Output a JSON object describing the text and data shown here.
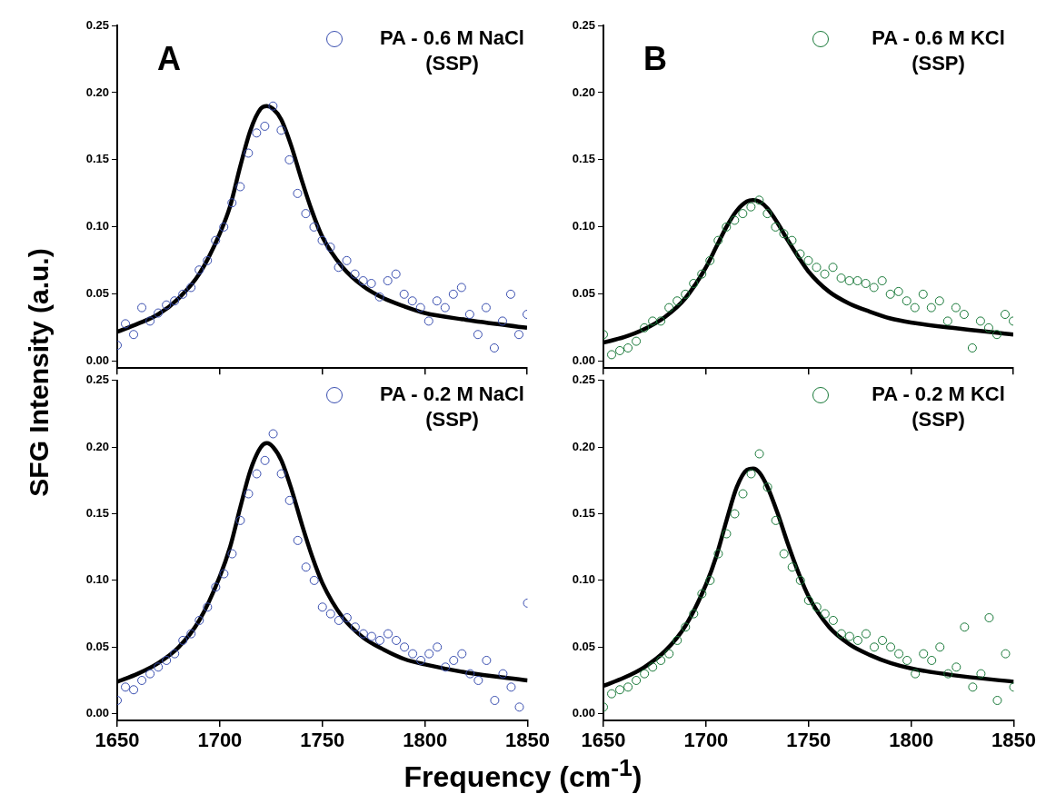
{
  "chart_data": [
    {
      "type": "scatter",
      "annotations": [
        "A"
      ],
      "ylabel": "SFG Intensity (a.u.)",
      "legend": "top right",
      "tick_labels": "y",
      "xlim": [
        1650,
        1850
      ],
      "xticks": [
        1650,
        1700,
        1750,
        1800,
        1850
      ],
      "ylim": [
        -0.005,
        0.25
      ],
      "yticks": [
        {
          "value": 0,
          "label": "0.00"
        },
        0.05,
        {
          "value": 0.1,
          "label": "0.10"
        },
        0.15,
        {
          "value": 0.2,
          "label": "0.20"
        },
        0.25
      ],
      "series": [
        {
          "name": "PA - 0.6 M NaCl (SSP)",
          "type": "scatter",
          "marker": "circle",
          "color": "#3a4fb0",
          "x": [
            1650,
            1654,
            1658,
            1662,
            1666,
            1670,
            1674,
            1678,
            1682,
            1686,
            1690,
            1694,
            1698,
            1702,
            1706,
            1710,
            1714,
            1718,
            1722,
            1726,
            1730,
            1734,
            1738,
            1742,
            1746,
            1750,
            1754,
            1758,
            1762,
            1766,
            1770,
            1774,
            1778,
            1782,
            1786,
            1790,
            1794,
            1798,
            1802,
            1806,
            1810,
            1814,
            1818,
            1822,
            1826,
            1830,
            1834,
            1838,
            1842,
            1846,
            1850
          ],
          "values": [
            0.012,
            0.028,
            0.02,
            0.04,
            0.03,
            0.036,
            0.042,
            0.045,
            0.05,
            0.055,
            0.068,
            0.075,
            0.09,
            0.1,
            0.118,
            0.13,
            0.155,
            0.17,
            0.175,
            0.19,
            0.172,
            0.15,
            0.125,
            0.11,
            0.1,
            0.09,
            0.085,
            0.07,
            0.075,
            0.065,
            0.06,
            0.058,
            0.048,
            0.06,
            0.065,
            0.05,
            0.045,
            0.04,
            0.03,
            0.045,
            0.04,
            0.05,
            0.055,
            0.035,
            0.02,
            0.04,
            0.01,
            0.03,
            0.05,
            0.02,
            0.035
          ]
        },
        {
          "type": "line",
          "color": "#000000",
          "x": [
            1650,
            1660,
            1670,
            1680,
            1690,
            1700,
            1705,
            1710,
            1715,
            1720,
            1723,
            1726,
            1730,
            1735,
            1740,
            1745,
            1750,
            1760,
            1770,
            1780,
            1790,
            1800,
            1820,
            1850
          ],
          "values": [
            0.022,
            0.028,
            0.035,
            0.047,
            0.065,
            0.095,
            0.115,
            0.145,
            0.172,
            0.188,
            0.19,
            0.188,
            0.18,
            0.16,
            0.135,
            0.112,
            0.093,
            0.07,
            0.056,
            0.047,
            0.041,
            0.036,
            0.031,
            0.025
          ]
        }
      ]
    },
    {
      "type": "scatter",
      "annotations": [
        "B"
      ],
      "legend": "top right",
      "tick_labels": "y",
      "xlim": [
        1650,
        1850
      ],
      "xticks": [
        1650,
        1700,
        1750,
        1800,
        1850
      ],
      "ylim": [
        -0.005,
        0.25
      ],
      "yticks": [
        {
          "value": 0,
          "label": "0.00"
        },
        0.05,
        {
          "value": 0.1,
          "label": "0.10"
        },
        0.15,
        {
          "value": 0.2,
          "label": "0.20"
        },
        0.25
      ],
      "series": [
        {
          "name": "PA - 0.6 M KCl (SSP)",
          "type": "scatter",
          "marker": "circle",
          "color": "#1a7a3a",
          "x": [
            1650,
            1654,
            1658,
            1662,
            1666,
            1670,
            1674,
            1678,
            1682,
            1686,
            1690,
            1694,
            1698,
            1702,
            1706,
            1710,
            1714,
            1718,
            1722,
            1726,
            1730,
            1734,
            1738,
            1742,
            1746,
            1750,
            1754,
            1758,
            1762,
            1766,
            1770,
            1774,
            1778,
            1782,
            1786,
            1790,
            1794,
            1798,
            1802,
            1806,
            1810,
            1814,
            1818,
            1822,
            1826,
            1830,
            1834,
            1838,
            1842,
            1846,
            1850
          ],
          "values": [
            0.02,
            0.005,
            0.008,
            0.01,
            0.015,
            0.025,
            0.03,
            0.03,
            0.04,
            0.045,
            0.05,
            0.058,
            0.065,
            0.075,
            0.09,
            0.1,
            0.105,
            0.11,
            0.115,
            0.12,
            0.11,
            0.1,
            0.095,
            0.09,
            0.08,
            0.075,
            0.07,
            0.065,
            0.07,
            0.062,
            0.06,
            0.06,
            0.058,
            0.055,
            0.06,
            0.05,
            0.052,
            0.045,
            0.04,
            0.05,
            0.04,
            0.045,
            0.03,
            0.04,
            0.035,
            0.01,
            0.03,
            0.025,
            0.02,
            0.035,
            0.03
          ]
        },
        {
          "type": "line",
          "color": "#000000",
          "x": [
            1650,
            1660,
            1670,
            1680,
            1690,
            1700,
            1705,
            1710,
            1715,
            1720,
            1723,
            1726,
            1730,
            1735,
            1740,
            1745,
            1750,
            1760,
            1770,
            1780,
            1790,
            1800,
            1820,
            1850
          ],
          "values": [
            0.014,
            0.018,
            0.024,
            0.033,
            0.047,
            0.07,
            0.085,
            0.1,
            0.112,
            0.119,
            0.12,
            0.119,
            0.114,
            0.103,
            0.09,
            0.078,
            0.067,
            0.052,
            0.043,
            0.037,
            0.032,
            0.029,
            0.025,
            0.02
          ]
        }
      ]
    },
    {
      "type": "scatter",
      "legend": "top right",
      "xlim": [
        1650,
        1850
      ],
      "xticks": [
        1650,
        1700,
        1750,
        1800,
        1850
      ],
      "ylim": [
        -0.005,
        0.25
      ],
      "yticks": [
        {
          "value": 0,
          "label": "0.00"
        },
        0.05,
        {
          "value": 0.1,
          "label": "0.10"
        },
        0.15,
        {
          "value": 0.2,
          "label": "0.20"
        },
        0.25
      ],
      "series": [
        {
          "name": "PA - 0.2 M NaCl (SSP)",
          "type": "scatter",
          "marker": "circle",
          "color": "#3a4fb0",
          "x": [
            1650,
            1654,
            1658,
            1662,
            1666,
            1670,
            1674,
            1678,
            1682,
            1686,
            1690,
            1694,
            1698,
            1702,
            1706,
            1710,
            1714,
            1718,
            1722,
            1726,
            1730,
            1734,
            1738,
            1742,
            1746,
            1750,
            1754,
            1758,
            1762,
            1766,
            1770,
            1774,
            1778,
            1782,
            1786,
            1790,
            1794,
            1798,
            1802,
            1806,
            1810,
            1814,
            1818,
            1822,
            1826,
            1830,
            1834,
            1838,
            1842,
            1846,
            1850
          ],
          "values": [
            0.01,
            0.02,
            0.018,
            0.025,
            0.03,
            0.035,
            0.04,
            0.045,
            0.055,
            0.06,
            0.07,
            0.08,
            0.095,
            0.105,
            0.12,
            0.145,
            0.165,
            0.18,
            0.19,
            0.21,
            0.18,
            0.16,
            0.13,
            0.11,
            0.1,
            0.08,
            0.075,
            0.07,
            0.072,
            0.065,
            0.06,
            0.058,
            0.055,
            0.06,
            0.055,
            0.05,
            0.045,
            0.04,
            0.045,
            0.05,
            0.035,
            0.04,
            0.045,
            0.03,
            0.025,
            0.04,
            0.01,
            0.03,
            0.02,
            0.005,
            0.083
          ]
        },
        {
          "type": "line",
          "color": "#000000",
          "x": [
            1650,
            1660,
            1670,
            1680,
            1690,
            1700,
            1705,
            1710,
            1715,
            1720,
            1723,
            1726,
            1730,
            1735,
            1740,
            1745,
            1750,
            1760,
            1770,
            1780,
            1790,
            1800,
            1820,
            1850
          ],
          "values": [
            0.024,
            0.03,
            0.038,
            0.05,
            0.07,
            0.103,
            0.125,
            0.155,
            0.183,
            0.2,
            0.203,
            0.2,
            0.19,
            0.168,
            0.142,
            0.118,
            0.098,
            0.072,
            0.057,
            0.048,
            0.041,
            0.037,
            0.031,
            0.025
          ]
        }
      ]
    },
    {
      "type": "scatter",
      "xlabel": "Frequency (cm$^{-1}$)",
      "legend": "top right",
      "xlim": [
        1650,
        1850
      ],
      "xticks": [
        1650,
        1700,
        1750,
        1800,
        1850
      ],
      "ylim": [
        -0.005,
        0.25
      ],
      "yticks": [
        {
          "value": 0,
          "label": "0.00"
        },
        0.05,
        {
          "value": 0.1,
          "label": "0.10"
        },
        0.15,
        {
          "value": 0.2,
          "label": "0.20"
        },
        0.25
      ],
      "series": [
        {
          "name": "PA - 0.2 M KCl (SSP)",
          "type": "scatter",
          "marker": "circle",
          "color": "#1a7a3a",
          "x": [
            1650,
            1654,
            1658,
            1662,
            1666,
            1670,
            1674,
            1678,
            1682,
            1686,
            1690,
            1694,
            1698,
            1702,
            1706,
            1710,
            1714,
            1718,
            1722,
            1726,
            1730,
            1734,
            1738,
            1742,
            1746,
            1750,
            1754,
            1758,
            1762,
            1766,
            1770,
            1774,
            1778,
            1782,
            1786,
            1790,
            1794,
            1798,
            1802,
            1806,
            1810,
            1814,
            1818,
            1822,
            1826,
            1830,
            1834,
            1838,
            1842,
            1846,
            1850
          ],
          "values": [
            0.005,
            0.015,
            0.018,
            0.02,
            0.025,
            0.03,
            0.035,
            0.04,
            0.045,
            0.055,
            0.065,
            0.075,
            0.09,
            0.1,
            0.12,
            0.135,
            0.15,
            0.165,
            0.18,
            0.195,
            0.17,
            0.145,
            0.12,
            0.11,
            0.1,
            0.085,
            0.08,
            0.075,
            0.07,
            0.06,
            0.058,
            0.055,
            0.06,
            0.05,
            0.055,
            0.05,
            0.045,
            0.04,
            0.03,
            0.045,
            0.04,
            0.05,
            0.03,
            0.035,
            0.065,
            0.02,
            0.03,
            0.072,
            0.01,
            0.045,
            0.02
          ]
        },
        {
          "type": "line",
          "color": "#000000",
          "x": [
            1650,
            1660,
            1670,
            1680,
            1690,
            1700,
            1705,
            1710,
            1715,
            1720,
            1723,
            1726,
            1730,
            1735,
            1740,
            1745,
            1750,
            1760,
            1770,
            1780,
            1790,
            1800,
            1820,
            1850
          ],
          "values": [
            0.021,
            0.027,
            0.035,
            0.047,
            0.066,
            0.097,
            0.118,
            0.145,
            0.17,
            0.183,
            0.184,
            0.181,
            0.17,
            0.15,
            0.127,
            0.106,
            0.088,
            0.065,
            0.052,
            0.044,
            0.038,
            0.034,
            0.029,
            0.024
          ]
        }
      ]
    }
  ]
}
